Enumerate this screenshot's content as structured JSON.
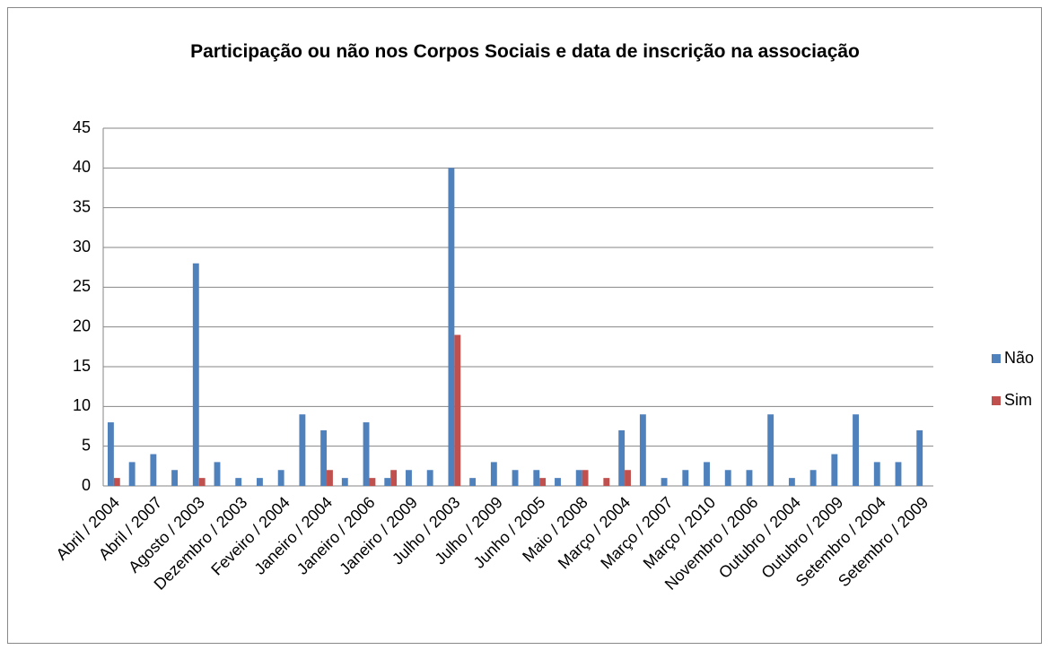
{
  "chart_data": {
    "type": "bar",
    "title": "Participação ou não nos Corpos Sociais e data de inscrição na associação",
    "categories": [
      "Abril / 2004",
      null,
      "Abril / 2007",
      null,
      "Agosto / 2003",
      null,
      "Dezembro / 2003",
      null,
      "Feveiro / 2004",
      null,
      "Janeiro / 2004",
      null,
      "Janeiro / 2006",
      null,
      "Janeiro / 2009",
      null,
      "Julho / 2003",
      null,
      "Julho / 2009",
      null,
      "Junho / 2005",
      null,
      "Maio / 2008",
      null,
      "Março / 2004",
      null,
      "Março / 2007",
      null,
      "Março / 2010",
      null,
      "Novembro / 2006",
      null,
      "Outubro / 2004",
      null,
      "Outubro / 2009",
      null,
      "Setembro / 2004",
      null,
      "Setembro / 2009"
    ],
    "series": [
      {
        "name": "Não",
        "color": "#4f81bd",
        "values": [
          8,
          3,
          4,
          2,
          28,
          3,
          1,
          1,
          2,
          9,
          7,
          1,
          8,
          1,
          2,
          2,
          40,
          1,
          3,
          2,
          2,
          1,
          2,
          null,
          7,
          9,
          1,
          2,
          3,
          2,
          2,
          9,
          1,
          2,
          4,
          9,
          3,
          3,
          7
        ]
      },
      {
        "name": "Sim",
        "color": "#c0504d",
        "values": [
          1,
          null,
          null,
          null,
          1,
          null,
          null,
          null,
          null,
          null,
          2,
          null,
          1,
          2,
          null,
          null,
          19,
          null,
          null,
          null,
          1,
          null,
          2,
          1,
          2,
          null,
          null,
          null,
          null,
          null,
          null,
          null,
          null,
          null,
          null,
          null,
          null,
          null,
          null
        ]
      }
    ],
    "ylim": [
      0,
      45
    ],
    "yticks": [
      0,
      5,
      10,
      15,
      20,
      25,
      30,
      35,
      40,
      45
    ],
    "grid": true,
    "legend": "right"
  }
}
